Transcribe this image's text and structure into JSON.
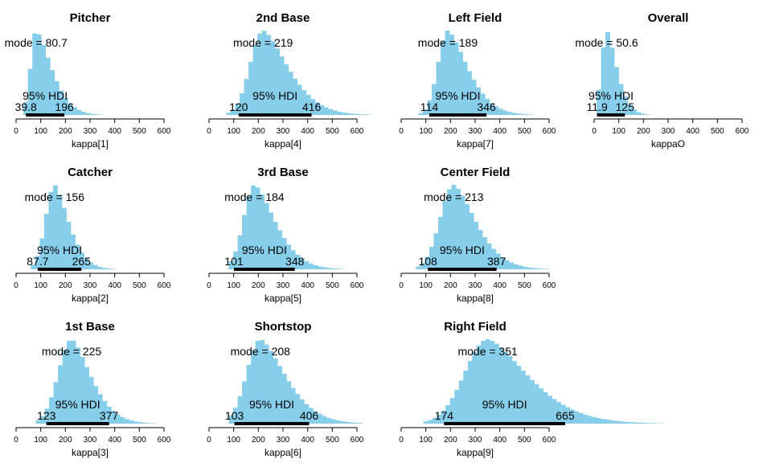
{
  "bar_color": "#87ceeb",
  "hdi_label": "95% HDI",
  "mode_prefix": "mode =",
  "chart_data": [
    {
      "type": "histogram",
      "title": "Pitcher",
      "xlabel": "kappa[1]",
      "mode": "80.7",
      "hdi": [
        "39.8",
        "196"
      ],
      "xlim": [
        0,
        600
      ],
      "x_ticks": [
        0,
        100,
        200,
        300,
        400,
        500,
        600
      ],
      "data_range": [
        30,
        390
      ],
      "shape": {
        "skew": 2.2
      }
    },
    {
      "type": "histogram",
      "title": "2nd Base",
      "xlabel": "kappa[4]",
      "mode": "219",
      "hdi": [
        "120",
        "416"
      ],
      "xlim": [
        0,
        600
      ],
      "x_ticks": [
        0,
        100,
        200,
        300,
        400,
        500,
        600
      ],
      "data_range": [
        70,
        800
      ],
      "shape": {
        "skew": 1.35
      }
    },
    {
      "type": "histogram",
      "title": "Left Field",
      "xlabel": "kappa[7]",
      "mode": "189",
      "hdi": [
        "114",
        "346"
      ],
      "xlim": [
        0,
        600
      ],
      "x_ticks": [
        0,
        100,
        200,
        300,
        400,
        500,
        600
      ],
      "data_range": [
        70,
        600
      ],
      "shape": {
        "skew": 1.3
      }
    },
    {
      "type": "histogram",
      "title": "Overall",
      "xlabel": "kappaO",
      "mode": "50.6",
      "hdi": [
        "11.9",
        "125"
      ],
      "xlim": [
        0,
        600
      ],
      "x_ticks": [
        0,
        100,
        200,
        300,
        400,
        500,
        600
      ],
      "data_range": [
        10,
        290
      ],
      "shape": {
        "skew": 2.5
      }
    },
    {
      "type": "histogram",
      "title": "Catcher",
      "xlabel": "kappa[2]",
      "mode": "156",
      "hdi": [
        "87.7",
        "265"
      ],
      "xlim": [
        0,
        600
      ],
      "x_ticks": [
        0,
        100,
        200,
        300,
        400,
        500,
        600
      ],
      "data_range": [
        60,
        440
      ],
      "shape": {
        "skew": 1.5
      }
    },
    {
      "type": "histogram",
      "title": "3rd Base",
      "xlabel": "kappa[5]",
      "mode": "184",
      "hdi": [
        "101",
        "348"
      ],
      "xlim": [
        0,
        600
      ],
      "x_ticks": [
        0,
        100,
        200,
        300,
        400,
        500,
        600
      ],
      "data_range": [
        80,
        660
      ],
      "shape": {
        "skew": 1.4
      }
    },
    {
      "type": "histogram",
      "title": "Center Field",
      "xlabel": "kappa[8]",
      "mode": "213",
      "hdi": [
        "108",
        "387"
      ],
      "xlim": [
        0,
        600
      ],
      "x_ticks": [
        0,
        100,
        200,
        300,
        400,
        500,
        600
      ],
      "data_range": [
        60,
        720
      ],
      "shape": {
        "skew": 1.4
      }
    },
    {
      "type": "histogram",
      "title": "1st Base",
      "xlabel": "kappa[3]",
      "mode": "225",
      "hdi": [
        "123",
        "377"
      ],
      "xlim": [
        0,
        600
      ],
      "x_ticks": [
        0,
        100,
        200,
        300,
        400,
        500,
        600
      ],
      "data_range": [
        80,
        660
      ],
      "shape": {
        "skew": 1.35
      }
    },
    {
      "type": "histogram",
      "title": "Shortstop",
      "xlabel": "kappa[6]",
      "mode": "208",
      "hdi": [
        "103",
        "406"
      ],
      "xlim": [
        0,
        600
      ],
      "x_ticks": [
        0,
        100,
        200,
        300,
        400,
        500,
        600
      ],
      "data_range": [
        80,
        620
      ],
      "shape": {
        "skew": 1.4
      }
    },
    {
      "type": "histogram",
      "title": "Right Field",
      "xlabel": "kappa[9]",
      "mode": "351",
      "hdi": [
        "174",
        "665"
      ],
      "xlim": [
        0,
        600
      ],
      "x_ticks": [
        0,
        100,
        200,
        300,
        400,
        500,
        600
      ],
      "data_range": [
        90,
        1280
      ],
      "shape": {
        "skew": 1.6
      }
    }
  ]
}
